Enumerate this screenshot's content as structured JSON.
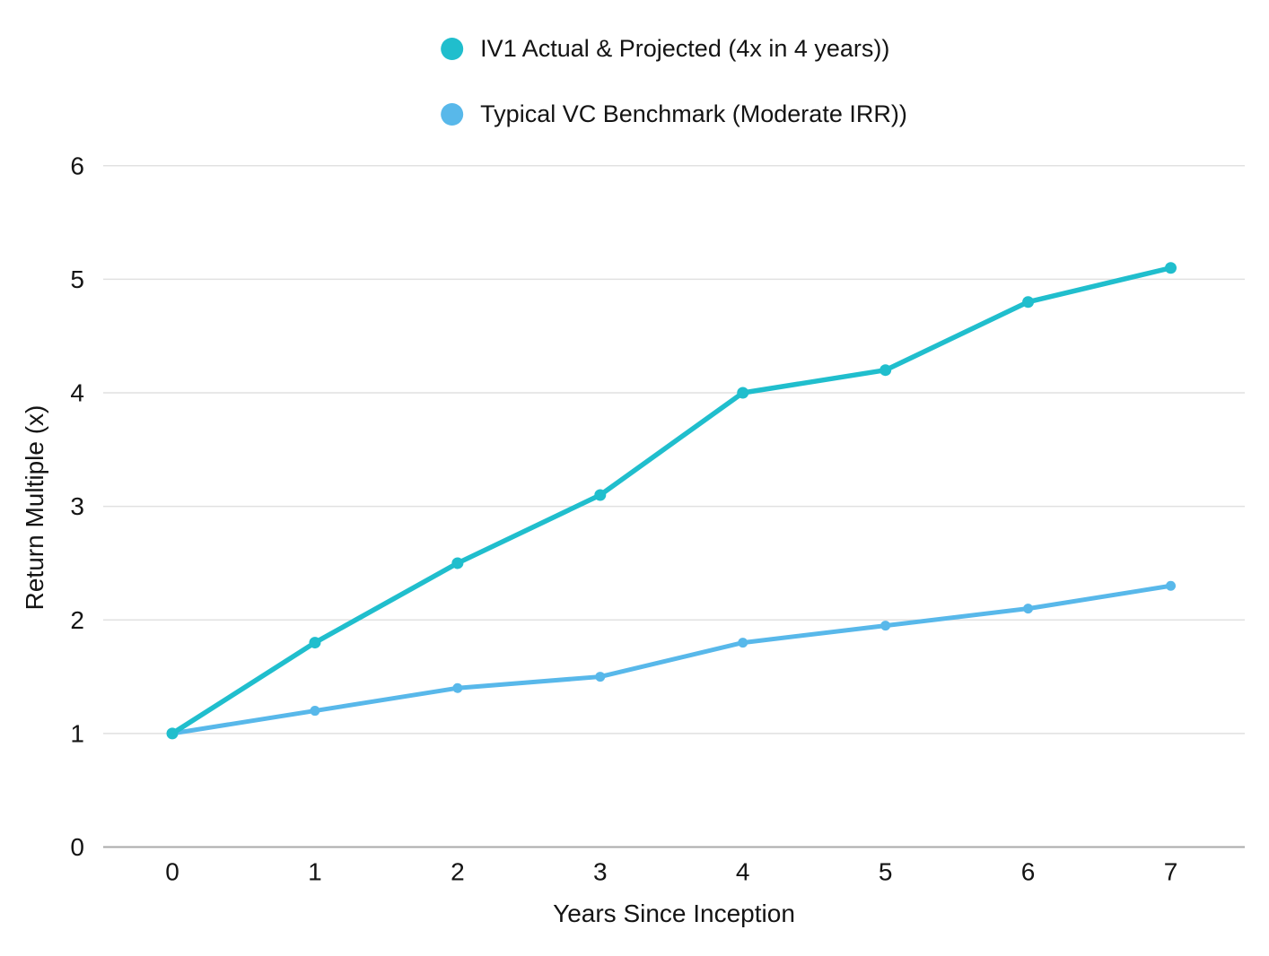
{
  "chart_data": {
    "type": "line",
    "x": [
      0,
      1,
      2,
      3,
      4,
      5,
      6,
      7
    ],
    "series": [
      {
        "name": "IV1 Actual & Projected (4x in 4 years))",
        "color": "#20BECD",
        "values": [
          1.0,
          1.8,
          2.5,
          3.1,
          4.0,
          4.2,
          4.8,
          5.1
        ]
      },
      {
        "name": "Typical VC Benchmark (Moderate IRR))",
        "color": "#58B8EA",
        "values": [
          1.0,
          1.2,
          1.4,
          1.5,
          1.8,
          1.95,
          2.1,
          2.3
        ]
      }
    ],
    "xlabel": "Years Since Inception",
    "ylabel": "Return Multiple (x)",
    "xticks": [
      0,
      1,
      2,
      3,
      4,
      5,
      6,
      7
    ],
    "yticks": [
      0,
      1,
      2,
      3,
      4,
      5,
      6
    ],
    "xlim": [
      0,
      7
    ],
    "ylim": [
      0,
      6
    ],
    "grid": "horizontal",
    "legend_position": "top-center",
    "colors": {
      "gridline": "#E1E1E1",
      "axis_line": "#A9A9A9",
      "text": "#141414",
      "background": "#FFFFFF"
    }
  }
}
